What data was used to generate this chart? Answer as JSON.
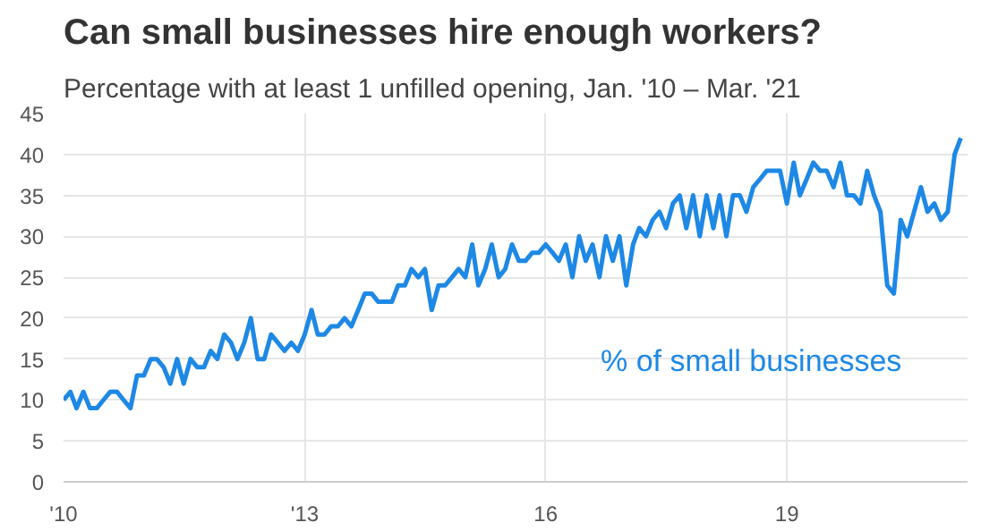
{
  "chart_data": {
    "type": "line",
    "title": "Can small businesses hire enough workers?",
    "subtitle": "Percentage with at least 1 unfilled opening, Jan. '10 – Mar. '21",
    "xlim": [
      "2010-01",
      "2021-04"
    ],
    "xticks": [
      {
        "value": "2010-01",
        "label": "'10"
      },
      {
        "value": "2013-01",
        "label": "'13"
      },
      {
        "value": "2016-01",
        "label": "16"
      },
      {
        "value": "2019-01",
        "label": "19"
      }
    ],
    "ylim": [
      0,
      45
    ],
    "yticks": [
      0,
      5,
      10,
      15,
      20,
      25,
      30,
      35,
      40,
      45
    ],
    "grid": true,
    "legend": false,
    "marker": "none",
    "line_style": "solid",
    "series": [
      {
        "name": "% of small businesses",
        "color": "#1e88e5",
        "x": [
          "2010-01",
          "2010-02",
          "2010-03",
          "2010-04",
          "2010-05",
          "2010-06",
          "2010-07",
          "2010-08",
          "2010-09",
          "2010-10",
          "2010-11",
          "2010-12",
          "2011-01",
          "2011-02",
          "2011-03",
          "2011-04",
          "2011-05",
          "2011-06",
          "2011-07",
          "2011-08",
          "2011-09",
          "2011-10",
          "2011-11",
          "2011-12",
          "2012-01",
          "2012-02",
          "2012-03",
          "2012-04",
          "2012-05",
          "2012-06",
          "2012-07",
          "2012-08",
          "2012-09",
          "2012-10",
          "2012-11",
          "2012-12",
          "2013-01",
          "2013-02",
          "2013-03",
          "2013-04",
          "2013-05",
          "2013-06",
          "2013-07",
          "2013-08",
          "2013-09",
          "2013-10",
          "2013-11",
          "2013-12",
          "2014-01",
          "2014-02",
          "2014-03",
          "2014-04",
          "2014-05",
          "2014-06",
          "2014-07",
          "2014-08",
          "2014-09",
          "2014-10",
          "2014-11",
          "2014-12",
          "2015-01",
          "2015-02",
          "2015-03",
          "2015-04",
          "2015-05",
          "2015-06",
          "2015-07",
          "2015-08",
          "2015-09",
          "2015-10",
          "2015-11",
          "2015-12",
          "2016-01",
          "2016-02",
          "2016-03",
          "2016-04",
          "2016-05",
          "2016-06",
          "2016-07",
          "2016-08",
          "2016-09",
          "2016-10",
          "2016-11",
          "2016-12",
          "2017-01",
          "2017-02",
          "2017-03",
          "2017-04",
          "2017-05",
          "2017-06",
          "2017-07",
          "2017-08",
          "2017-09",
          "2017-10",
          "2017-11",
          "2017-12",
          "2018-01",
          "2018-02",
          "2018-03",
          "2018-04",
          "2018-05",
          "2018-06",
          "2018-07",
          "2018-08",
          "2018-09",
          "2018-10",
          "2018-11",
          "2018-12",
          "2019-01",
          "2019-02",
          "2019-03",
          "2019-04",
          "2019-05",
          "2019-06",
          "2019-07",
          "2019-08",
          "2019-09",
          "2019-10",
          "2019-11",
          "2019-12",
          "2020-01",
          "2020-02",
          "2020-03",
          "2020-04",
          "2020-05",
          "2020-06",
          "2020-07",
          "2020-08",
          "2020-09",
          "2020-10",
          "2020-11",
          "2020-12",
          "2021-01",
          "2021-02",
          "2021-03"
        ],
        "values": [
          10,
          11,
          9,
          11,
          9,
          9,
          10,
          11,
          11,
          10,
          9,
          13,
          13,
          15,
          15,
          14,
          12,
          15,
          12,
          15,
          14,
          14,
          16,
          15,
          18,
          17,
          15,
          17,
          20,
          15,
          15,
          18,
          17,
          16,
          17,
          16,
          18,
          21,
          18,
          18,
          19,
          19,
          20,
          19,
          21,
          23,
          23,
          22,
          22,
          22,
          24,
          24,
          26,
          25,
          26,
          21,
          24,
          24,
          25,
          26,
          25,
          29,
          24,
          26,
          29,
          25,
          26,
          29,
          27,
          27,
          28,
          28,
          29,
          28,
          27,
          29,
          25,
          30,
          27,
          29,
          25,
          30,
          27,
          30,
          24,
          29,
          31,
          30,
          32,
          33,
          31,
          34,
          35,
          31,
          35,
          30,
          35,
          31,
          35,
          30,
          35,
          35,
          33,
          36,
          37,
          38,
          38,
          38,
          34,
          39,
          35,
          37,
          39,
          38,
          38,
          36,
          39,
          35,
          35,
          34,
          38,
          35,
          33,
          24,
          23,
          32,
          30,
          33,
          36,
          33,
          34,
          32,
          33,
          40,
          42
        ]
      }
    ]
  }
}
